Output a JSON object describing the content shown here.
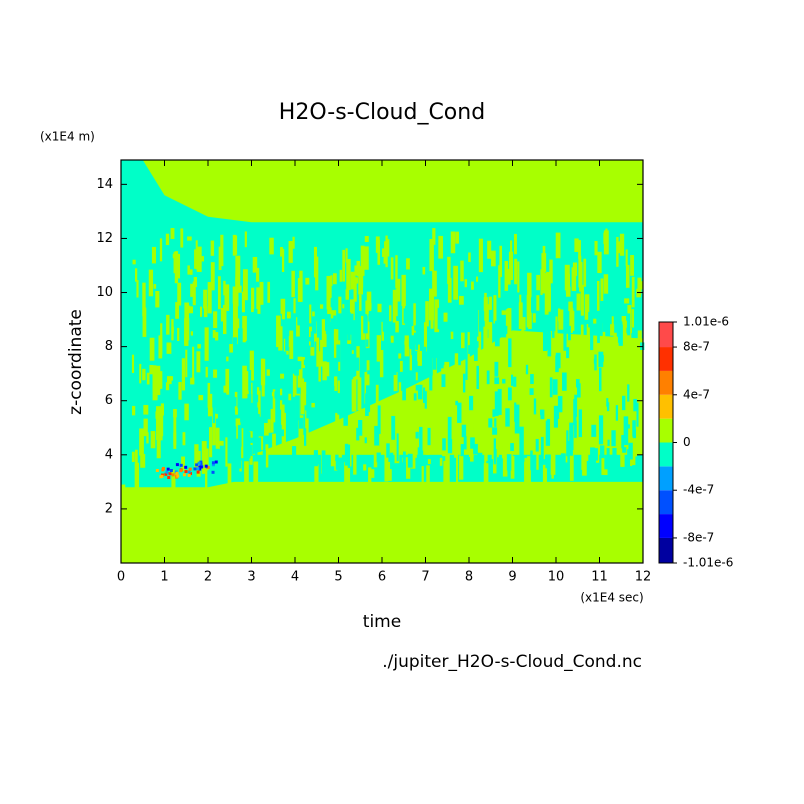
{
  "chart_data": {
    "type": "contour",
    "title": "H2O-s-Cloud_Cond",
    "x_label": "time",
    "y_label": "z-coordinate",
    "x_units": "(x1E4 sec)",
    "y_units": "(x1E4 m)",
    "source": "./jupiter_H2O-s-Cloud_Cond.nc",
    "xlim": [
      0,
      12
    ],
    "xticks": [
      0,
      1,
      2,
      3,
      4,
      5,
      6,
      7,
      8,
      9,
      10,
      11,
      12
    ],
    "ylim": [
      0,
      14.9
    ],
    "yticks": [
      2,
      4,
      6,
      8,
      10,
      12,
      14
    ],
    "levels": [
      -1.01e-06,
      -8e-07,
      -6e-07,
      -4e-07,
      -2e-07,
      0,
      2e-07,
      4e-07,
      6e-07,
      8e-07,
      1.01e-06
    ],
    "colors": [
      "#0000a0",
      "#0000ff",
      "#0050ff",
      "#00a0ff",
      "#00ffc8",
      "#a8ff00",
      "#ffc000",
      "#ff8000",
      "#ff3000",
      "#ff4a4a"
    ],
    "colorbar_ticks": [
      {
        "value": -1.01e-06,
        "label": "-1.01e-6"
      },
      -8e-07,
      -4e-07,
      0,
      4e-07,
      8e-07,
      {
        "value": 1.01e-06,
        "label": "1.01e-6"
      }
    ]
  }
}
